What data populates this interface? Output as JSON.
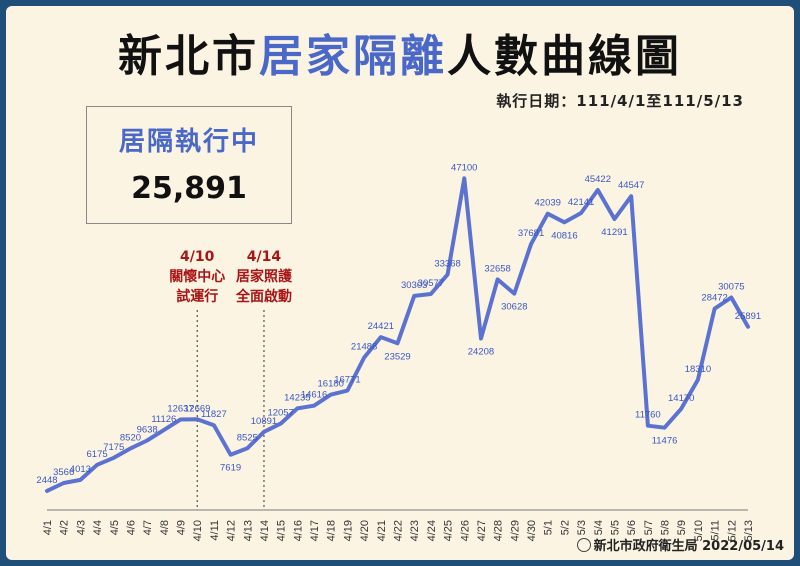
{
  "title_part1": "新北市",
  "title_part2": "居家隔離",
  "title_part3": "人數曲線圖",
  "date_range": "執行日期：111/4/1至111/5/13",
  "box": {
    "label": "居隔執行中",
    "value": "25,891"
  },
  "footer": "新北市政府衛生局 2022/05/14",
  "colors": {
    "line": "#5b72d0",
    "title_accent": "#4a68c8",
    "annotation": "#a81515",
    "background": "#fbf4e3"
  },
  "annotations": [
    {
      "date": "4/10",
      "lines": [
        "4/10",
        "關懷中心",
        "試運行"
      ]
    },
    {
      "date": "4/14",
      "lines": [
        "4/14",
        "居家照護",
        "全面啟動"
      ]
    }
  ],
  "chart_data": {
    "type": "line",
    "title": "新北市居家隔離人數曲線圖",
    "xlabel": "",
    "ylabel": "",
    "ylim": [
      0,
      50000
    ],
    "grid": false,
    "categories": [
      "4/1",
      "4/2",
      "4/3",
      "4/4",
      "4/5",
      "4/6",
      "4/7",
      "4/8",
      "4/9",
      "4/10",
      "4/11",
      "4/12",
      "4/13",
      "4/14",
      "4/15",
      "4/16",
      "4/17",
      "4/18",
      "4/19",
      "4/20",
      "4/21",
      "4/22",
      "4/23",
      "4/24",
      "4/25",
      "4/26",
      "4/27",
      "4/28",
      "4/29",
      "4/30",
      "5/1",
      "5/2",
      "5/3",
      "5/4",
      "5/5",
      "5/6",
      "5/7",
      "5/8",
      "5/9",
      "5/10",
      "5/11",
      "5/12",
      "5/13"
    ],
    "values": [
      2448,
      3566,
      4013,
      6175,
      7175,
      8520,
      9638,
      11126,
      12637,
      12669,
      11827,
      7619,
      8525,
      10891,
      12057,
      14235,
      14616,
      16180,
      16771,
      21488,
      24421,
      23529,
      30303,
      30577,
      33368,
      47100,
      24208,
      32658,
      30628,
      37681,
      42039,
      40816,
      42141,
      45422,
      41291,
      44547,
      11760,
      11476,
      14170,
      18310,
      28472,
      30075,
      25891
    ]
  }
}
